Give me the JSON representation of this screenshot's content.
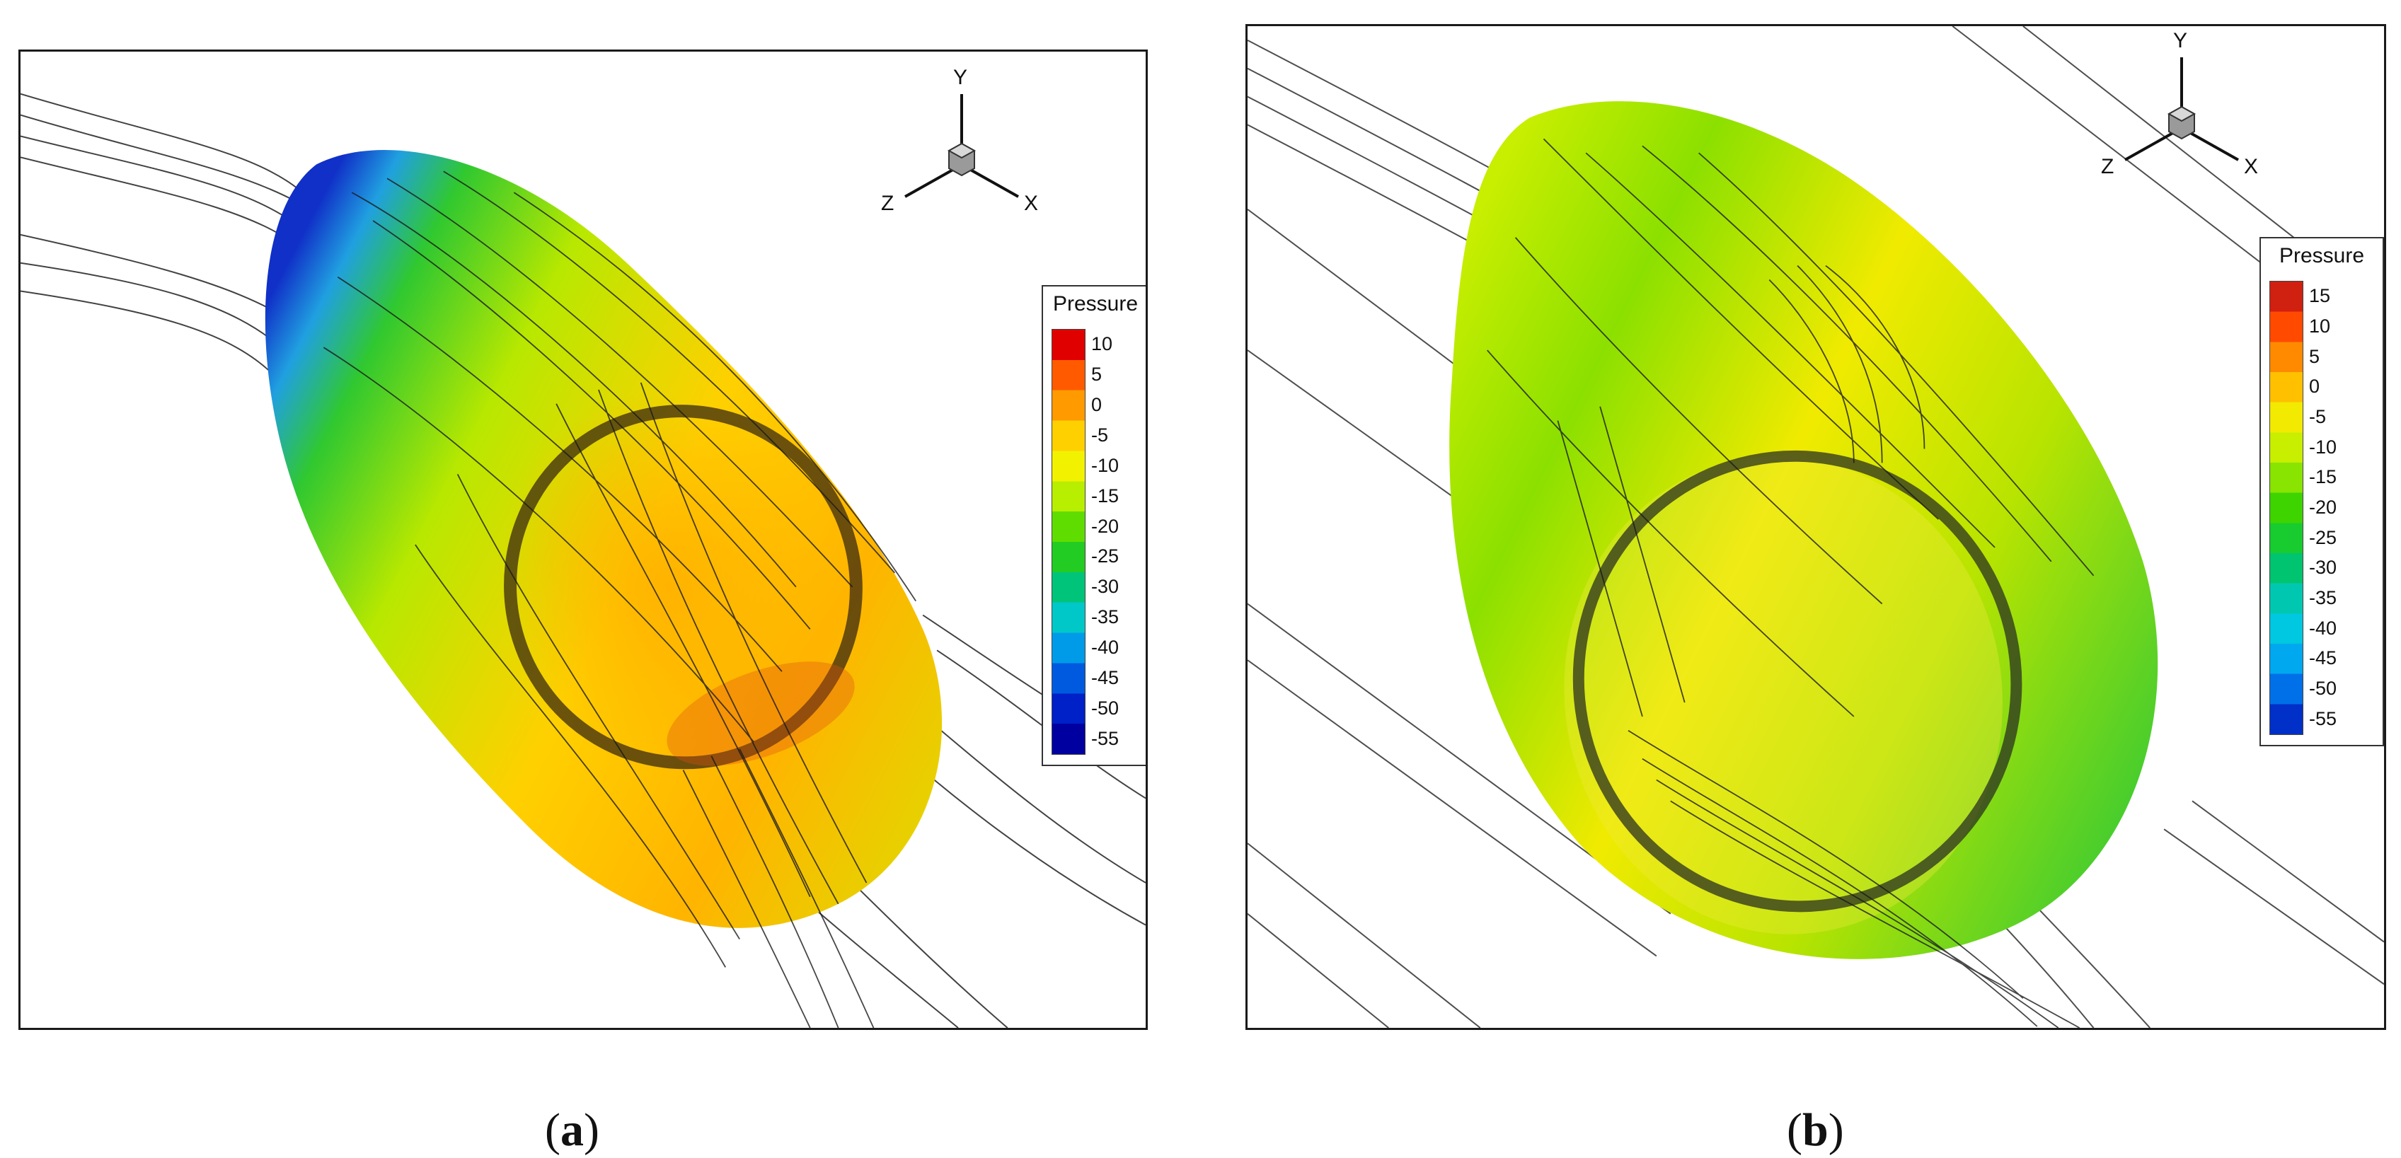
{
  "figure": {
    "panels": [
      {
        "id": "a",
        "caption_open": "(",
        "caption_letter": "a",
        "caption_close": ")",
        "legend_title": "Pressure",
        "legend_ticks": [
          "10",
          "5",
          "0",
          "-5",
          "-10",
          "-15",
          "-20",
          "-25",
          "-30",
          "-35",
          "-40",
          "-45",
          "-50",
          "-55"
        ],
        "axes": {
          "x": "X",
          "y": "Y",
          "z": "Z"
        },
        "colormap": [
          "#e00000",
          "#ff5a00",
          "#ff9a00",
          "#ffd000",
          "#f2f200",
          "#b8ee00",
          "#60dd00",
          "#22cc22",
          "#00c47a",
          "#00c8c8",
          "#009be8",
          "#005ae0",
          "#0020c8",
          "#0000a0"
        ]
      },
      {
        "id": "b",
        "caption_open": "(",
        "caption_letter": "b",
        "caption_close": ")",
        "legend_title": "Pressure",
        "legend_ticks": [
          "15",
          "10",
          "5",
          "0",
          "-5",
          "-10",
          "-15",
          "-20",
          "-25",
          "-30",
          "-35",
          "-40",
          "-45",
          "-50",
          "-55"
        ],
        "axes": {
          "x": "X",
          "y": "Y",
          "z": "Z"
        },
        "colormap": [
          "#d02010",
          "#ff4a00",
          "#ff8a00",
          "#ffc000",
          "#f2ea00",
          "#c8ee00",
          "#88e400",
          "#3ed400",
          "#18cc30",
          "#00c470",
          "#00c8b0",
          "#00c8e0",
          "#00a8f0",
          "#0070e8",
          "#0030c8"
        ]
      }
    ]
  }
}
